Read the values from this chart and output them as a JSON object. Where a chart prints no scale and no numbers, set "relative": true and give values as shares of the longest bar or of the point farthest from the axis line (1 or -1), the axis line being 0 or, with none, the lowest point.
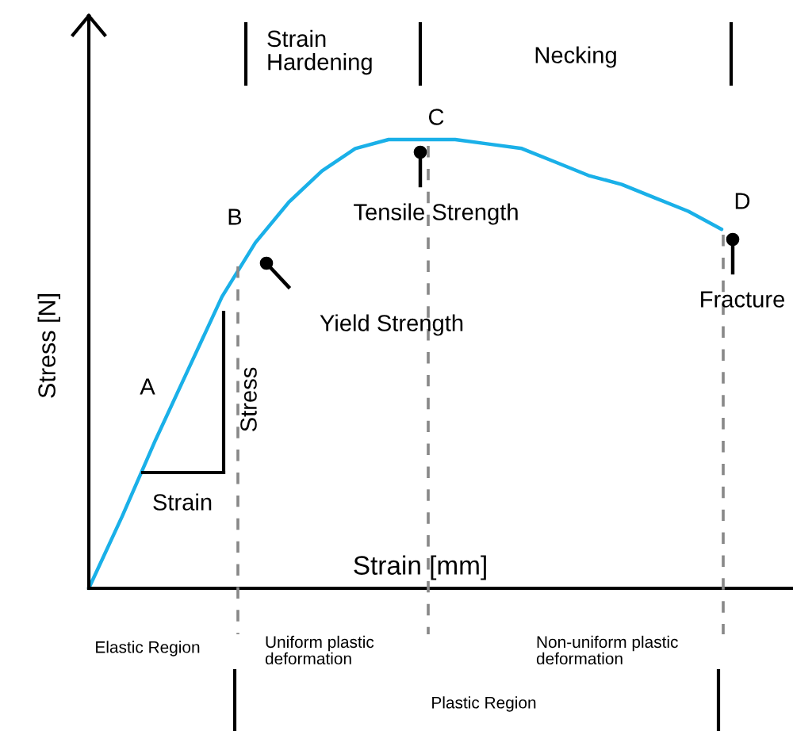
{
  "chart_data": {
    "type": "line",
    "relative": true,
    "xlabel": "Strain [mm]",
    "ylabel": "Stress [N]",
    "categories": [
      null,
      null,
      null,
      null,
      null,
      null,
      null,
      null,
      null,
      null,
      null,
      null,
      null,
      null,
      null,
      null,
      null,
      null,
      null,
      null
    ],
    "series": [
      {
        "color": "#1ab0e8",
        "values": [
          0,
          0.16,
          0.33,
          0.49,
          0.65,
          0.77,
          0.86,
          0.93,
          0.98,
          1,
          1,
          1,
          0.99,
          0.98,
          0.95,
          0.92,
          0.9,
          0.87,
          0.84,
          0.8
        ]
      }
    ],
    "annotations": [
      "Strain\nHardening",
      "Necking",
      "C",
      "Tensile Strength",
      "B",
      "D",
      "Fracture",
      "Yield Strength",
      "A",
      "Stress",
      "Strain",
      "Elastic Region",
      "Uniform plastic\ndeformation",
      "Non-uniform plastic\ndeformation",
      "Plastic Region"
    ]
  }
}
